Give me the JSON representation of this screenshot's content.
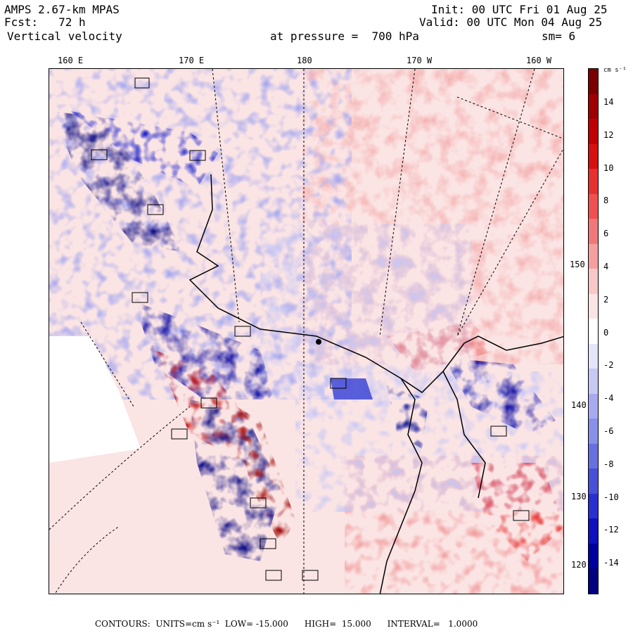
{
  "header": {
    "model": "AMPS 2.67-km MPAS",
    "forecast": "Fcst:   72 h",
    "field": "Vertical velocity",
    "init": "Init: 00 UTC Fri 01 Aug 25",
    "valid": "Valid: 00 UTC Mon 04 Aug 25",
    "level": "at pressure =  700 hPa",
    "smoothing": "sm= 6"
  },
  "top_longitude_labels": [
    "160 E",
    "170 E",
    "180",
    "170 W",
    "160 W"
  ],
  "right_longitude_labels": [
    "150 W",
    "140 W",
    "130 W",
    "120 W"
  ],
  "colorbar": {
    "units": "cm s⁻¹",
    "labels": [
      "14",
      "12",
      "10",
      "8",
      "6",
      "4",
      "2",
      "0",
      "-2",
      "-4",
      "-6",
      "-8",
      "-10",
      "-12",
      "-14"
    ],
    "colors_top_to_bottom": [
      "#7a0000",
      "#9e0000",
      "#c00000",
      "#d81010",
      "#e83030",
      "#f05050",
      "#f07878",
      "#f5a0a0",
      "#f8c8c8",
      "#fbe4e4",
      "#ffffff",
      "#e4e4fb",
      "#c8c8f5",
      "#a8aaf0",
      "#8890ea",
      "#6870e0",
      "#4850d8",
      "#2830d0",
      "#1010c0",
      "#0000a0",
      "#000080"
    ]
  },
  "footer": "CONTOURS:  UNITS=cm s⁻¹  LOW= -15.000      HIGH=  15.000      INTERVAL=   1.0000",
  "colors": {
    "positive": "#e03030",
    "negative": "#2838d0",
    "neutral": "#ffffff"
  }
}
